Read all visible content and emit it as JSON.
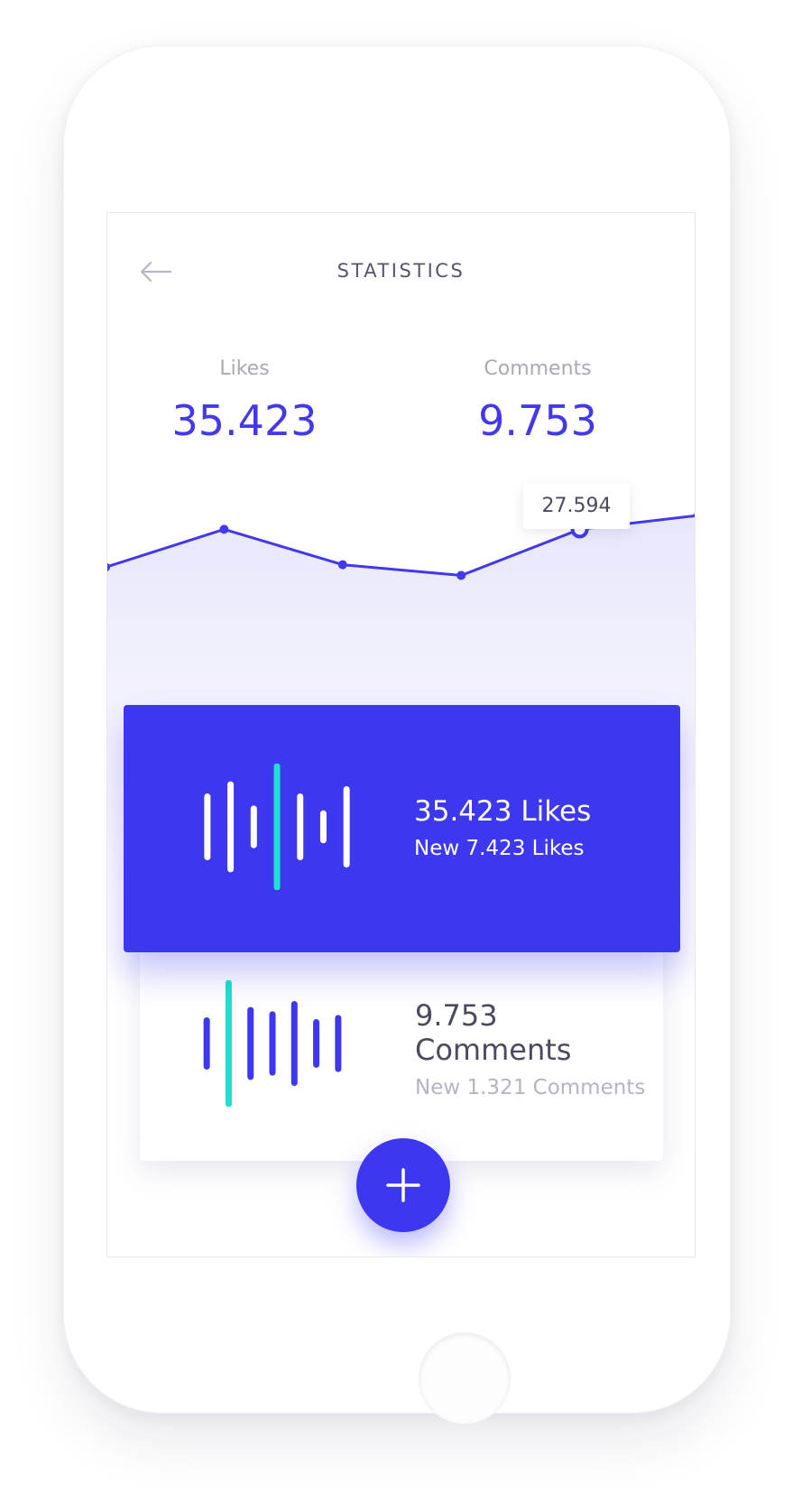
{
  "header": {
    "title": "STATISTICS",
    "back_icon": "arrow-left-icon"
  },
  "stats": {
    "likes": {
      "label": "Likes",
      "value": "35.423"
    },
    "comments": {
      "label": "Comments",
      "value": "9.753"
    }
  },
  "chart_data": {
    "type": "line",
    "points": [
      {
        "y": 0.18
      },
      {
        "y": 0.78
      },
      {
        "y": 0.22
      },
      {
        "y": 0.05
      },
      {
        "y": 0.78
      },
      {
        "y": 1.0
      }
    ],
    "highlighted_index": 4,
    "tooltip": "27.594",
    "colors": {
      "line": "#4338ea",
      "fill": "#ebeafb"
    }
  },
  "cards": {
    "likes": {
      "primary": "35.423 Likes",
      "secondary": "New 7.423 Likes",
      "bar_levels": [
        0.5,
        0.7,
        0.3,
        1.0,
        0.5,
        0.22,
        0.62
      ],
      "accent_bar_index": 3,
      "colors": {
        "background": "#3d38f0",
        "bar": "#ffffff",
        "accent": "#1fe0cf"
      }
    },
    "comments": {
      "primary": "9.753 Comments",
      "secondary": "New 1.321 Comments",
      "bar_levels": [
        0.38,
        1.0,
        0.55,
        0.48,
        0.65,
        0.35,
        0.42
      ],
      "accent_bar_index": 1,
      "colors": {
        "background": "#ffffff",
        "bar": "#3d38f0",
        "accent": "#1fe0cf"
      }
    }
  },
  "fab": {
    "icon": "plus-icon",
    "color": "#3d38f0"
  }
}
